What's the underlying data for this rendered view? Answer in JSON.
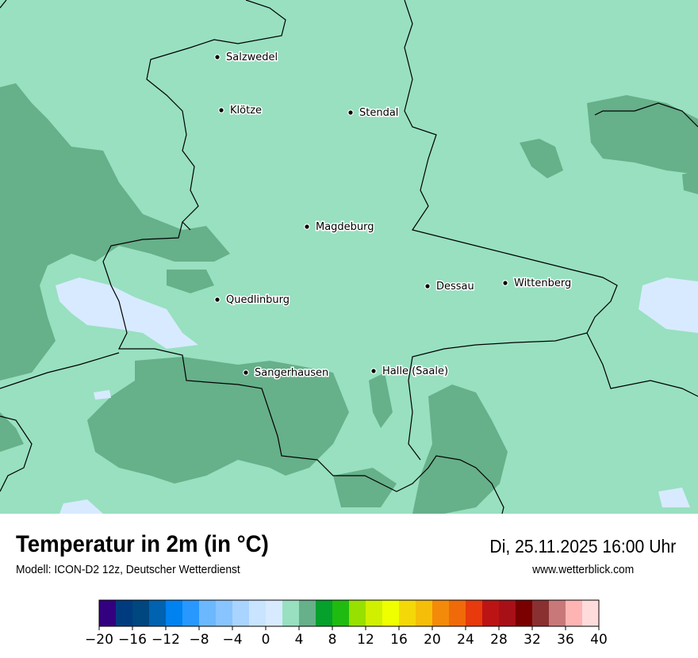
{
  "header": {
    "title": "Temperatur in 2m (in °C)",
    "subtitle": "Modell: ICON-D2 12z, Deutscher Wetterdienst",
    "datetime": "Di, 25.11.2025 16:00 Uhr",
    "website": "www.wetterblick.com"
  },
  "map": {
    "background_color": "#98e0c0",
    "cities": [
      {
        "name": "Salzwedel"
      },
      {
        "name": "Klötze"
      },
      {
        "name": "Stendal"
      },
      {
        "name": "Magdeburg"
      },
      {
        "name": "Dessau"
      },
      {
        "name": "Wittenberg"
      },
      {
        "name": "Quedlinburg"
      },
      {
        "name": "Sangerhausen"
      },
      {
        "name": "Halle (Saale)"
      }
    ]
  },
  "legend": {
    "min": -20,
    "max": 40,
    "step": 2,
    "tick_labels": [
      "−20",
      "−16",
      "−12",
      "−8",
      "−4",
      "0",
      "4",
      "8",
      "12",
      "16",
      "20",
      "24",
      "28",
      "32",
      "36",
      "40"
    ],
    "colors": [
      "#330080",
      "#003b80",
      "#00467f",
      "#0062b0",
      "#0082f0",
      "#2898ff",
      "#6cb8ff",
      "#88c4ff",
      "#a8d4ff",
      "#c8e4ff",
      "#d8eaff",
      "#98e0c0",
      "#66b08a",
      "#06a02c",
      "#20bb10",
      "#98e000",
      "#d0f000",
      "#f0ff00",
      "#f5d808",
      "#f5be08",
      "#f48a0a",
      "#f06a0a",
      "#e83a0c",
      "#bc1414",
      "#a81018",
      "#7a0000",
      "#8a3030",
      "#c87878",
      "#ffb4b4",
      "#ffdcdc"
    ]
  }
}
